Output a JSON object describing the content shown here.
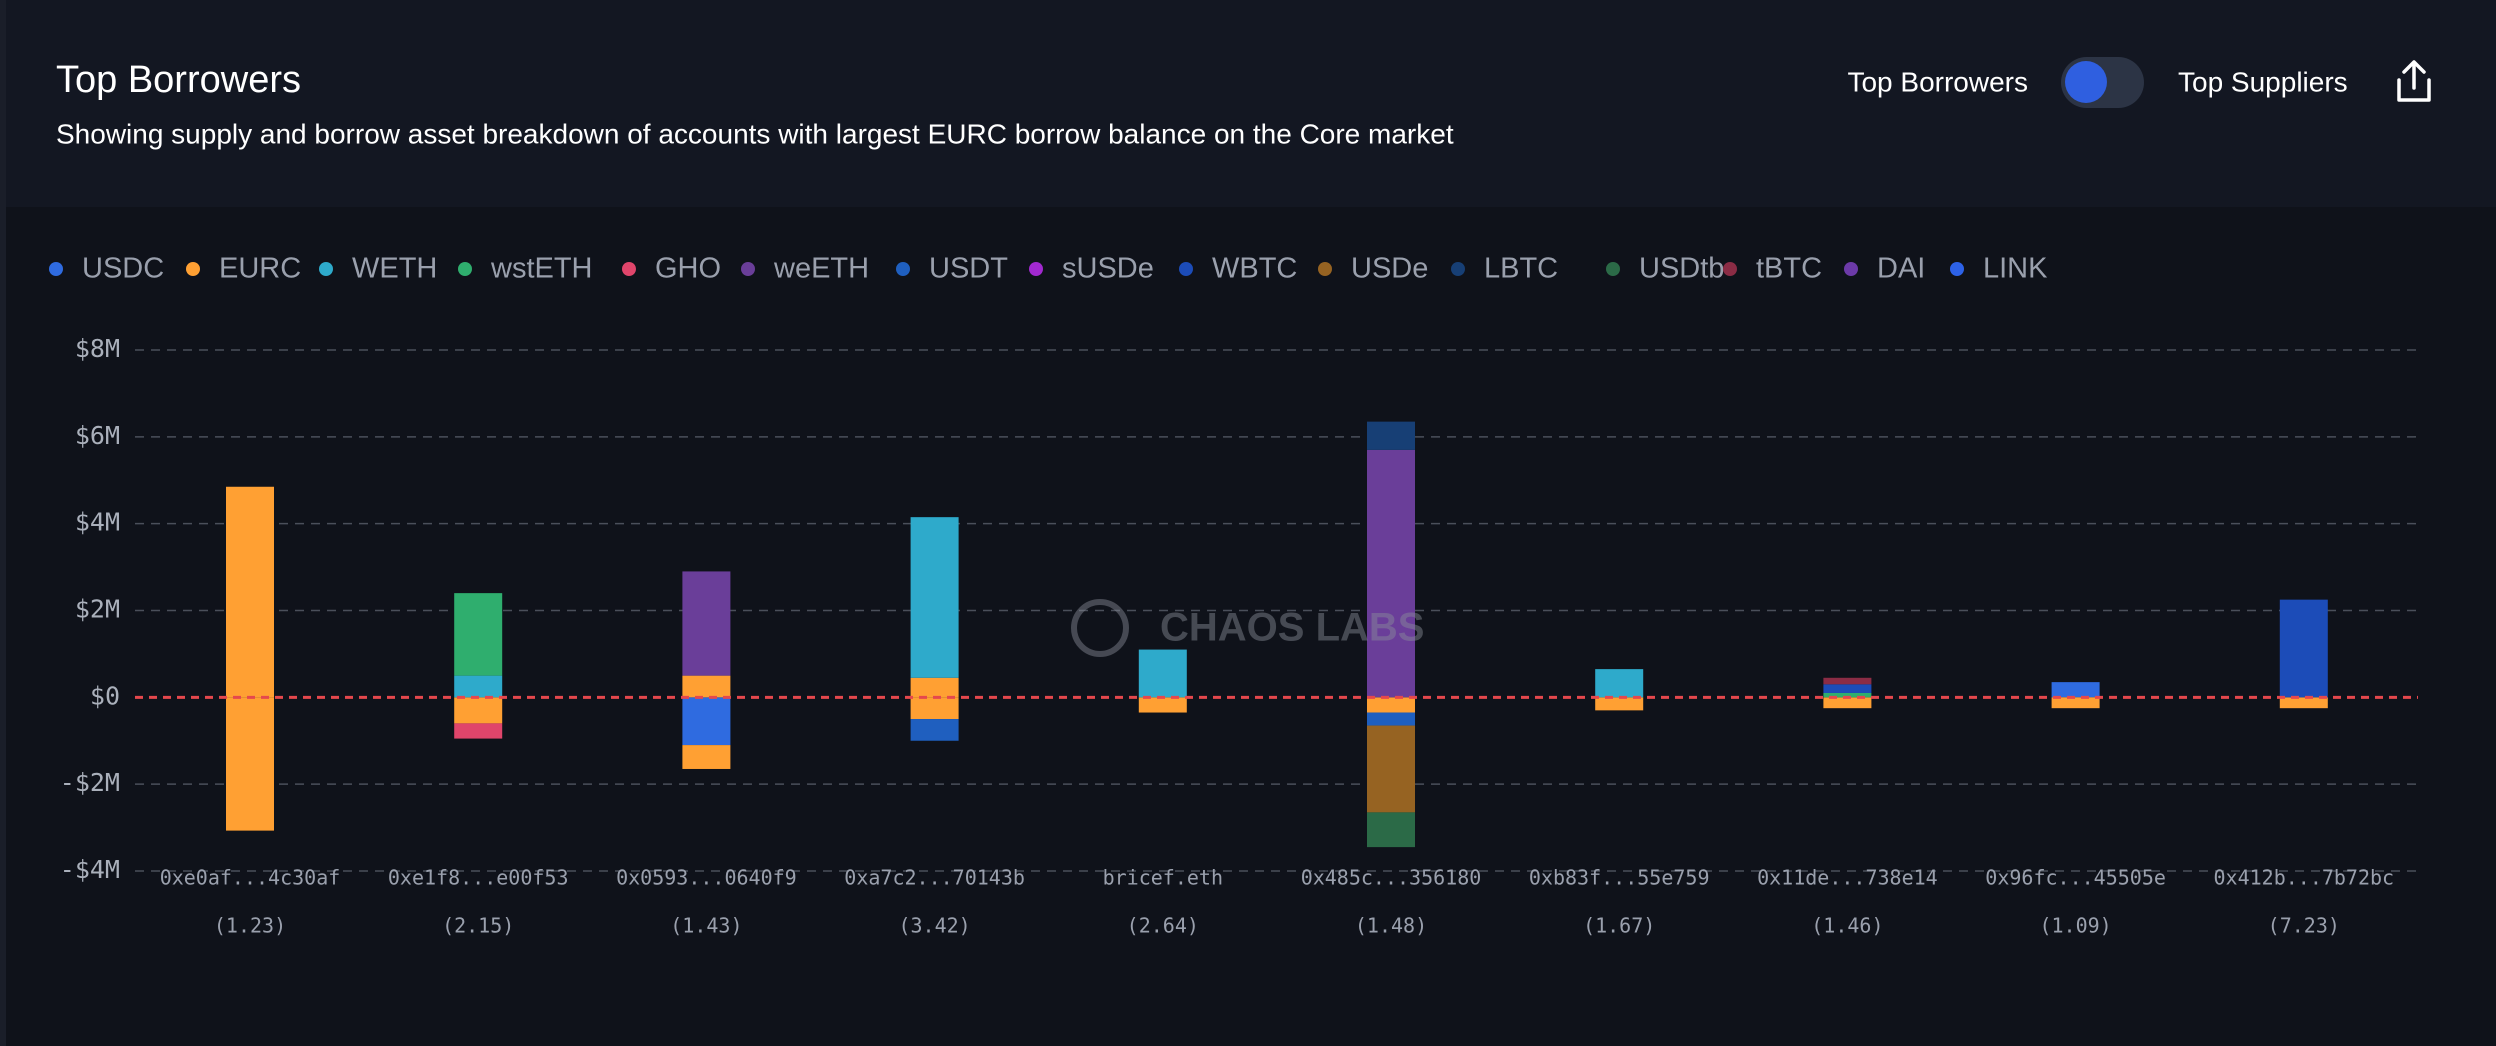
{
  "header": {
    "title": "Top Borrowers",
    "subtitle": "Showing supply and borrow asset breakdown of accounts with largest EURC borrow balance on the Core market",
    "toggle_left": "Top Borrowers",
    "toggle_right": "Top Suppliers"
  },
  "chart_data": {
    "type": "stacked_bar",
    "watermark": "CHAOS LABS",
    "categories": [
      "0xe0af...4c30af",
      "0xe1f8...e00f53",
      "0x0593...0640f9",
      "0xa7c2...70143b",
      "bricef.eth",
      "0x485c...356180",
      "0xb83f...55e759",
      "0x11de...738e14",
      "0x96fc...45505e",
      "0x412b...7b72bc"
    ],
    "category_notes": [
      "(1.23)",
      "(2.15)",
      "(1.43)",
      "(3.42)",
      "(2.64)",
      "(1.48)",
      "(1.67)",
      "(1.46)",
      "(1.09)",
      "(7.23)"
    ],
    "ylim": [
      -4000000,
      8000000
    ],
    "yticks": [
      {
        "value": -4000000,
        "label": "-$4M"
      },
      {
        "value": -2000000,
        "label": "-$2M"
      },
      {
        "value": 0,
        "label": "$0"
      },
      {
        "value": 2000000,
        "label": "$2M"
      },
      {
        "value": 4000000,
        "label": "$4M"
      },
      {
        "value": 6000000,
        "label": "$6M"
      },
      {
        "value": 8000000,
        "label": "$8M"
      }
    ],
    "grid": true,
    "series": [
      {
        "name": "USDC",
        "color": "#2f6be0",
        "values": [
          null,
          null,
          null,
          null,
          null,
          null,
          null,
          null,
          350000,
          null
        ],
        "borrow": [
          null,
          null,
          -1100000,
          null,
          null,
          null,
          null,
          null,
          null,
          null
        ]
      },
      {
        "name": "EURC",
        "color": "#ffa033",
        "values": [
          4850000,
          null,
          500000,
          450000,
          null,
          null,
          null,
          null,
          null,
          null
        ],
        "borrow": [
          -3070000,
          -600000,
          -550000,
          -500000,
          -350000,
          -350000,
          -300000,
          -250000,
          -250000,
          -250000
        ]
      },
      {
        "name": "WETH",
        "color": "#2eaacb",
        "values": [
          null,
          500000,
          null,
          3700000,
          1100000,
          null,
          650000,
          null,
          null,
          null
        ],
        "borrow": [
          null,
          null,
          null,
          null,
          null,
          null,
          null,
          null,
          null,
          null
        ]
      },
      {
        "name": "wstETH",
        "color": "#2fae6e",
        "values": [
          null,
          1900000,
          null,
          null,
          null,
          null,
          null,
          100000,
          null,
          null
        ],
        "borrow": [
          null,
          null,
          null,
          null,
          null,
          null,
          null,
          null,
          null,
          null
        ]
      },
      {
        "name": "GHO",
        "color": "#e0456b",
        "values": [
          null,
          null,
          null,
          null,
          null,
          null,
          null,
          null,
          null,
          null
        ],
        "borrow": [
          null,
          -350000,
          null,
          null,
          null,
          null,
          null,
          null,
          null,
          null
        ]
      },
      {
        "name": "weETH",
        "color": "#6a3e99",
        "values": [
          null,
          null,
          2400000,
          null,
          null,
          5700000,
          null,
          null,
          null,
          null
        ],
        "borrow": [
          null,
          null,
          null,
          null,
          null,
          null,
          null,
          null,
          null,
          null
        ]
      },
      {
        "name": "USDT",
        "color": "#1f5fbf",
        "values": [
          null,
          null,
          null,
          null,
          null,
          null,
          null,
          null,
          null,
          null
        ],
        "borrow": [
          null,
          null,
          null,
          -500000,
          null,
          -300000,
          null,
          null,
          null,
          null
        ]
      },
      {
        "name": "sUSDe",
        "color": "#a229d0",
        "values": [
          null,
          null,
          null,
          null,
          null,
          null,
          null,
          null,
          null,
          null
        ],
        "borrow": [
          null,
          null,
          null,
          null,
          null,
          null,
          null,
          null,
          null,
          null
        ]
      },
      {
        "name": "WBTC",
        "color": "#1c4cb8",
        "values": [
          null,
          null,
          null,
          null,
          null,
          null,
          null,
          200000,
          null,
          2250000
        ],
        "borrow": [
          null,
          null,
          null,
          null,
          null,
          null,
          null,
          null,
          null,
          null
        ]
      },
      {
        "name": "USDe",
        "color": "#966322",
        "values": [
          null,
          null,
          null,
          null,
          null,
          null,
          null,
          null,
          null,
          null
        ],
        "borrow": [
          null,
          null,
          null,
          null,
          null,
          -2000000,
          null,
          null,
          null,
          null
        ]
      },
      {
        "name": "LBTC",
        "color": "#173f75",
        "values": [
          null,
          null,
          null,
          null,
          null,
          650000,
          null,
          null,
          null,
          null
        ],
        "borrow": [
          null,
          null,
          null,
          null,
          null,
          null,
          null,
          null,
          null,
          null
        ]
      },
      {
        "name": "USDtb",
        "color": "#2b6a47",
        "values": [
          null,
          null,
          null,
          null,
          null,
          null,
          null,
          null,
          null,
          null
        ],
        "borrow": [
          null,
          null,
          null,
          null,
          null,
          -800000,
          null,
          null,
          null,
          null
        ]
      },
      {
        "name": "tBTC",
        "color": "#8b2c45",
        "values": [
          null,
          null,
          null,
          null,
          null,
          null,
          null,
          150000,
          null,
          null
        ],
        "borrow": [
          null,
          null,
          null,
          null,
          null,
          null,
          null,
          null,
          null,
          null
        ]
      },
      {
        "name": "DAI",
        "color": "#6c3aa8",
        "values": [
          null,
          null,
          null,
          null,
          null,
          null,
          null,
          null,
          null,
          null
        ],
        "borrow": [
          null,
          null,
          null,
          null,
          null,
          null,
          null,
          null,
          null,
          null
        ]
      },
      {
        "name": "LINK",
        "color": "#2d62e8",
        "values": [
          null,
          null,
          null,
          null,
          null,
          null,
          null,
          null,
          null,
          null
        ],
        "borrow": [
          null,
          null,
          null,
          null,
          null,
          null,
          null,
          null,
          null,
          null
        ]
      }
    ]
  }
}
